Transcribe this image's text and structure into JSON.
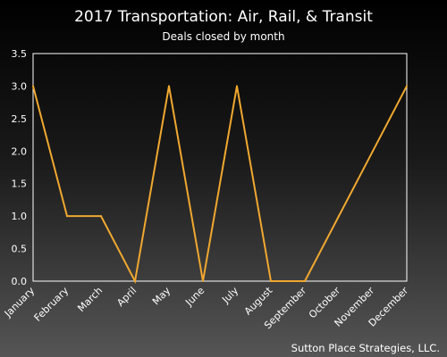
{
  "chart_data": {
    "type": "line",
    "title": "2017 Transportation: Air, Rail, & Transit",
    "subtitle": "Deals closed by month",
    "xlabel": "",
    "ylabel": "",
    "categories": [
      "January",
      "February",
      "March",
      "April",
      "May",
      "June",
      "July",
      "August",
      "September",
      "October",
      "November",
      "December"
    ],
    "series": [
      {
        "values": [
          3,
          1,
          1,
          0,
          3,
          0,
          3,
          0,
          0,
          1,
          2,
          3
        ]
      }
    ],
    "ylim": [
      0,
      3.5
    ],
    "yticks": [
      "0.0",
      "0.5",
      "1.0",
      "1.5",
      "2.0",
      "2.5",
      "3.0",
      "3.5"
    ],
    "grid": false,
    "legend": "none",
    "source": "Sutton Place Strategies, LLC.",
    "colors": {
      "line": "#f0a830",
      "axis": "#ffffff",
      "text": "#ffffff"
    }
  }
}
